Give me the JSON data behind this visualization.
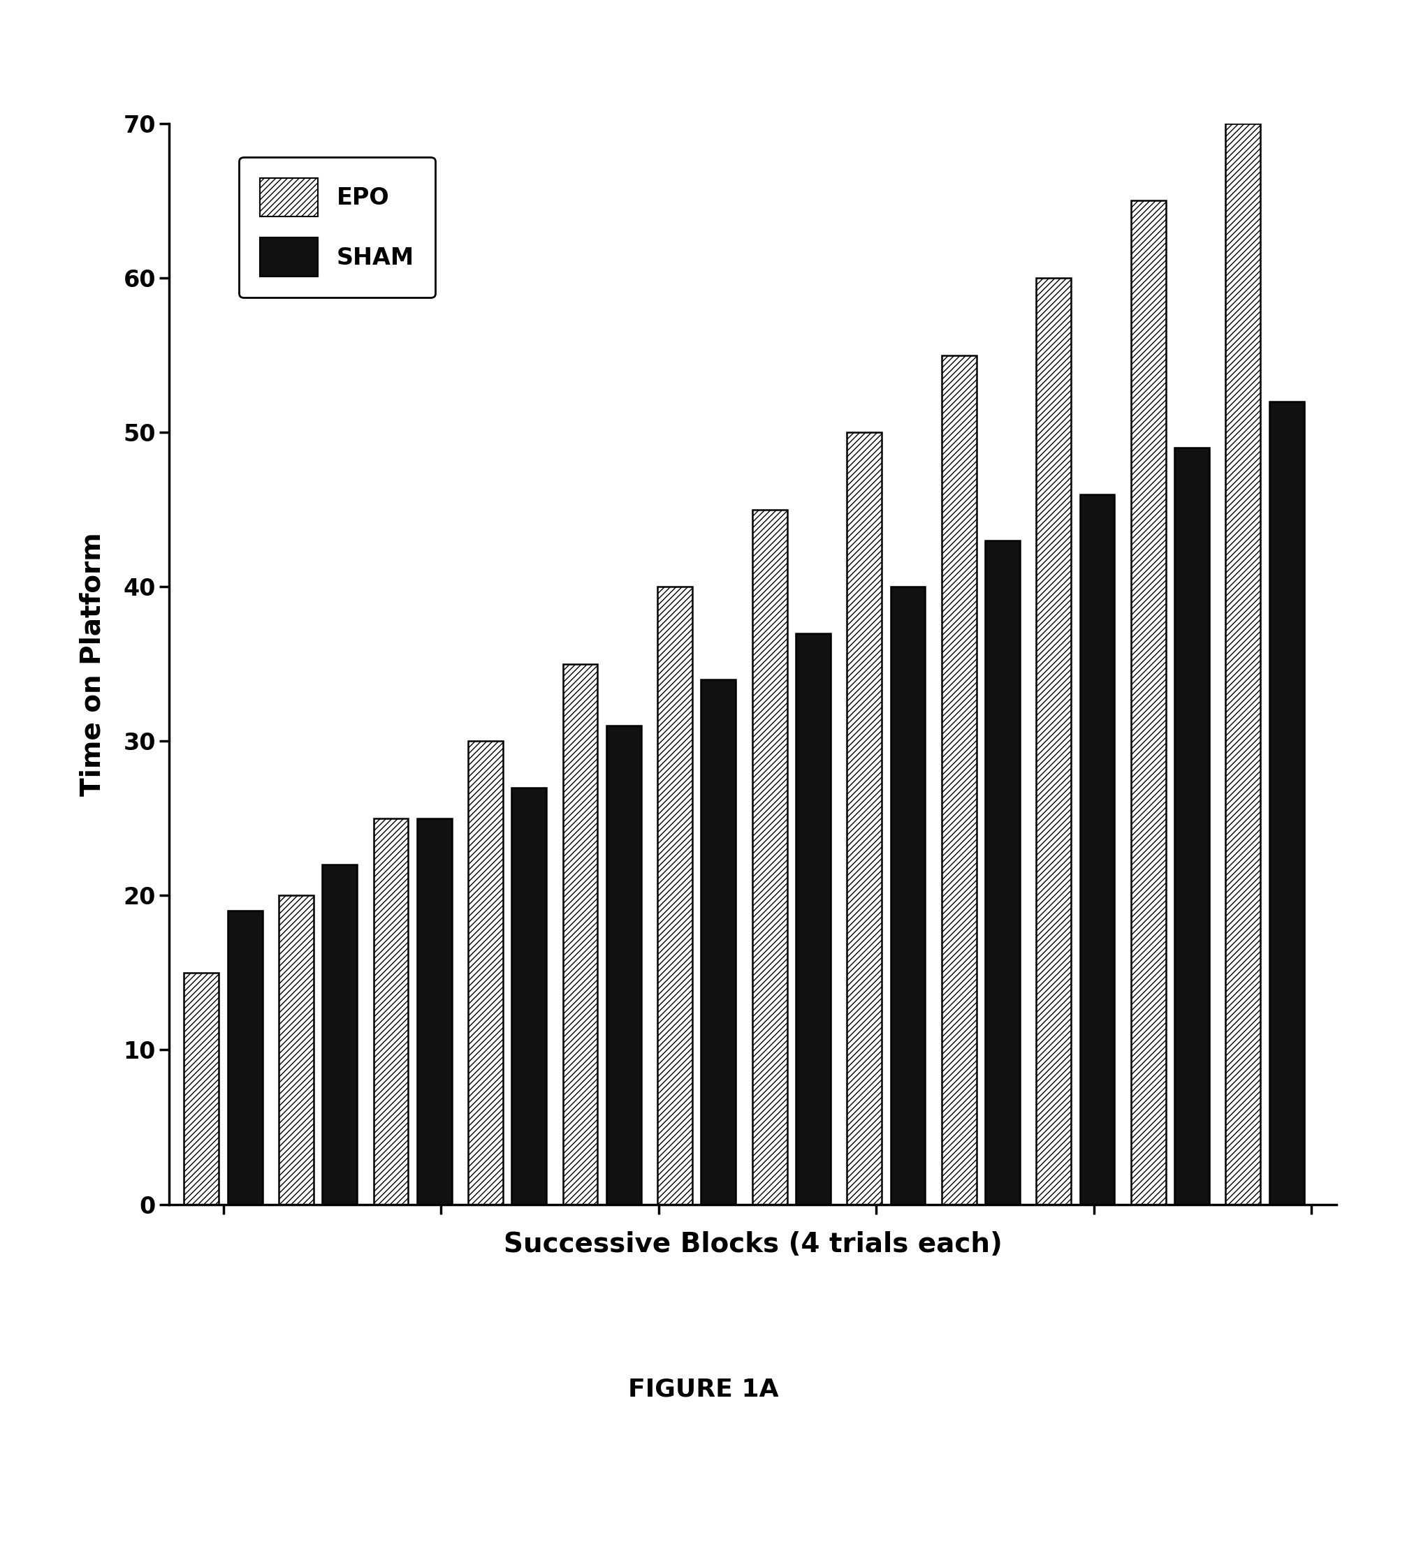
{
  "epo_values": [
    15,
    20,
    25,
    30,
    35,
    40,
    45,
    50,
    55,
    60,
    65,
    70
  ],
  "sham_values": [
    19,
    22,
    25,
    27,
    31,
    34,
    37,
    40,
    43,
    46,
    49,
    52
  ],
  "n_groups": 12,
  "ylabel": "Time on Platform",
  "xlabel": "Successive Blocks (4 trials each)",
  "caption": "FIGURE 1A",
  "ylim": [
    0,
    70
  ],
  "yticks": [
    0,
    10,
    20,
    30,
    40,
    50,
    60,
    70
  ],
  "legend_labels": [
    "EPO",
    "SHAM"
  ],
  "bar_width": 0.32,
  "background_color": "#ffffff",
  "epo_facecolor": "#ffffff",
  "epo_edgecolor": "#000000",
  "sham_facecolor": "#111111",
  "sham_edgecolor": "#000000",
  "hatch_pattern": "////",
  "axis_label_fontsize": 28,
  "tick_fontsize": 24,
  "legend_fontsize": 24,
  "caption_fontsize": 26
}
